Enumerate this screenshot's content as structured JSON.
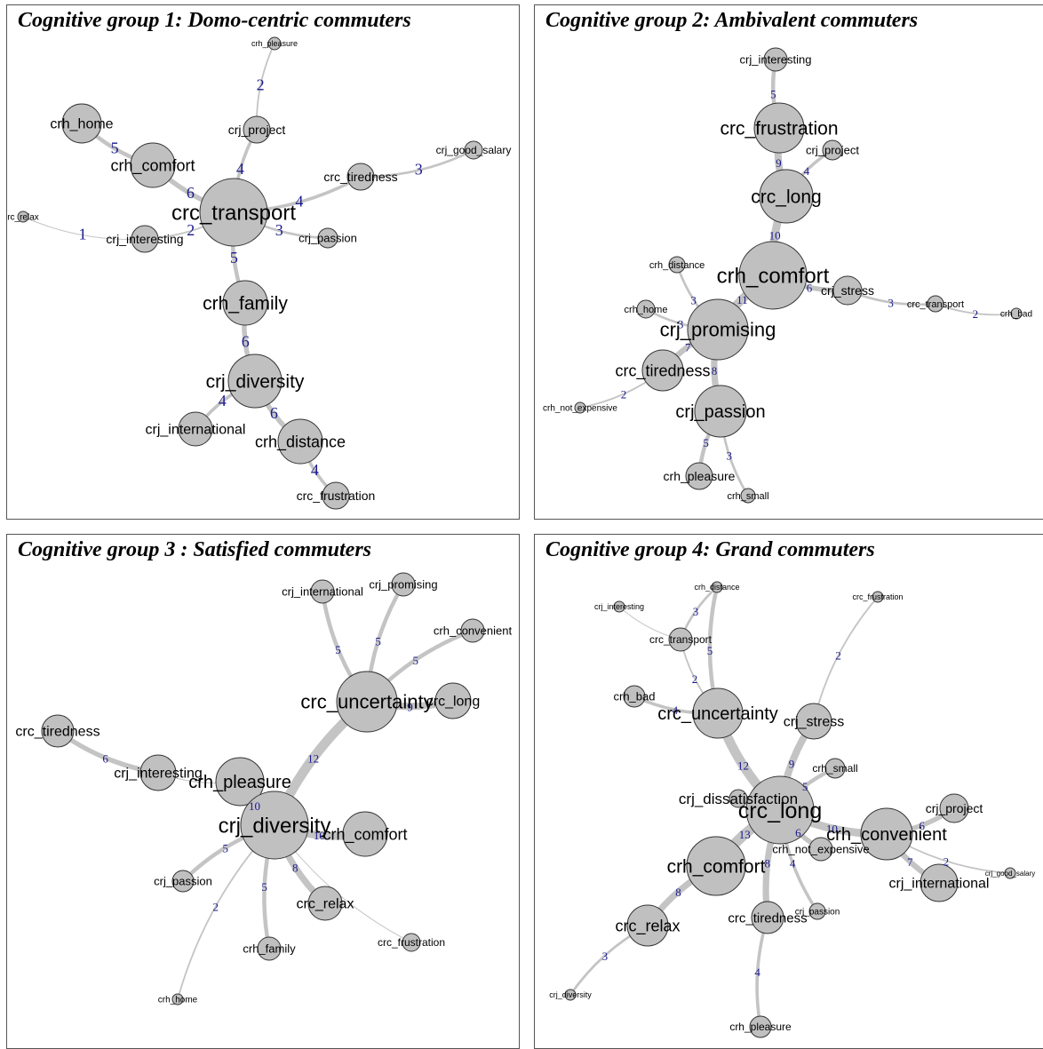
{
  "style": {
    "node_fill": "#c0c0c0",
    "node_stroke": "#333333",
    "edge_color": "#c4c4c4",
    "weight_color": "#1a1a8c",
    "label_color": "#000000"
  },
  "panels": [
    {
      "title": "Cognitive group 1:  Domo-centric commuters",
      "nodes": [
        {
          "id": "crc_transport",
          "label": "crc_transport"
        },
        {
          "id": "crh_pleasure",
          "label": "crh_pleasure"
        },
        {
          "id": "crj_project",
          "label": "crj_project"
        },
        {
          "id": "crh_home",
          "label": "crh_home"
        },
        {
          "id": "crh_comfort",
          "label": "crh_comfort"
        },
        {
          "id": "crc_tiredness",
          "label": "crc_tiredness"
        },
        {
          "id": "crj_good_salary",
          "label": "crj_good_salary"
        },
        {
          "id": "rc_relax",
          "label": "rc_relax"
        },
        {
          "id": "crj_interesting",
          "label": "crj_interesting"
        },
        {
          "id": "crj_passion",
          "label": "crj_passion"
        },
        {
          "id": "crh_family",
          "label": "crh_family"
        },
        {
          "id": "crj_diversity",
          "label": "crj_diversity"
        },
        {
          "id": "crj_international",
          "label": "crj_international"
        },
        {
          "id": "crh_distance",
          "label": "crh_distance"
        },
        {
          "id": "crc_frustration",
          "label": "crc_frustration"
        }
      ],
      "edges": [
        {
          "source": "crh_pleasure",
          "target": "crj_project",
          "weight": "2"
        },
        {
          "source": "crj_project",
          "target": "crc_transport",
          "weight": "4"
        },
        {
          "source": "crh_home",
          "target": "crh_comfort",
          "weight": "5"
        },
        {
          "source": "crh_comfort",
          "target": "crc_transport",
          "weight": "6"
        },
        {
          "source": "crc_transport",
          "target": "crc_tiredness",
          "weight": "4"
        },
        {
          "source": "crc_tiredness",
          "target": "crj_good_salary",
          "weight": "3"
        },
        {
          "source": "rc_relax",
          "target": "crj_interesting",
          "weight": "1"
        },
        {
          "source": "crj_interesting",
          "target": "crc_transport",
          "weight": "2"
        },
        {
          "source": "crc_transport",
          "target": "crj_passion",
          "weight": "3"
        },
        {
          "source": "crc_transport",
          "target": "crh_family",
          "weight": "5"
        },
        {
          "source": "crh_family",
          "target": "crj_diversity",
          "weight": "6"
        },
        {
          "source": "crj_diversity",
          "target": "crj_international",
          "weight": "4"
        },
        {
          "source": "crj_diversity",
          "target": "crh_distance",
          "weight": "6"
        },
        {
          "source": "crh_distance",
          "target": "crc_frustration",
          "weight": "4"
        }
      ]
    },
    {
      "title": "Cognitive group 2: Ambivalent commuters",
      "nodes": [
        {
          "id": "crj_interesting",
          "label": "crj_interesting"
        },
        {
          "id": "crc_frustration",
          "label": "crc_frustration"
        },
        {
          "id": "crj_project",
          "label": "crj_project"
        },
        {
          "id": "crc_long",
          "label": "crc_long"
        },
        {
          "id": "crh_comfort",
          "label": "crh_comfort"
        },
        {
          "id": "crh_distance",
          "label": "crh_distance"
        },
        {
          "id": "crj_stress",
          "label": "crj_stress"
        },
        {
          "id": "crc_transport",
          "label": "crc_transport"
        },
        {
          "id": "crh_bad",
          "label": "crh_bad"
        },
        {
          "id": "crh_home",
          "label": "crh_home"
        },
        {
          "id": "crj_promising",
          "label": "crj_promising"
        },
        {
          "id": "crc_tiredness",
          "label": "crc_tiredness"
        },
        {
          "id": "crh_not_expensive",
          "label": "crh_not_expensive"
        },
        {
          "id": "crj_passion",
          "label": "crj_passion"
        },
        {
          "id": "crh_pleasure",
          "label": "crh_pleasure"
        },
        {
          "id": "crh_small",
          "label": "crh_small"
        }
      ],
      "edges": [
        {
          "source": "crj_interesting",
          "target": "crc_frustration",
          "weight": "5"
        },
        {
          "source": "crc_frustration",
          "target": "crc_long",
          "weight": "9"
        },
        {
          "source": "crj_project",
          "target": "crc_long",
          "weight": "4"
        },
        {
          "source": "crc_long",
          "target": "crh_comfort",
          "weight": "10"
        },
        {
          "source": "crh_comfort",
          "target": "crj_stress",
          "weight": "6"
        },
        {
          "source": "crj_stress",
          "target": "crc_transport",
          "weight": "3"
        },
        {
          "source": "crc_transport",
          "target": "crh_bad",
          "weight": "2"
        },
        {
          "source": "crh_distance",
          "target": "crj_promising",
          "weight": "3"
        },
        {
          "source": "crh_home",
          "target": "crj_promising",
          "weight": "3"
        },
        {
          "source": "crh_comfort",
          "target": "crj_promising",
          "weight": "11"
        },
        {
          "source": "crj_promising",
          "target": "crc_tiredness",
          "weight": "7"
        },
        {
          "source": "crj_promising",
          "target": "crj_passion",
          "weight": "8"
        },
        {
          "source": "crh_not_expensive",
          "target": "crc_tiredness",
          "weight": "2"
        },
        {
          "source": "crj_passion",
          "target": "crh_pleasure",
          "weight": "5"
        },
        {
          "source": "crj_passion",
          "target": "crh_small",
          "weight": "3"
        }
      ]
    },
    {
      "title": "Cognitive group 3 : Satisfied commuters",
      "nodes": [
        {
          "id": "crj_international",
          "label": "crj_international"
        },
        {
          "id": "crj_promising",
          "label": "crj_promising"
        },
        {
          "id": "crh_convenient",
          "label": "crh_convenient"
        },
        {
          "id": "crc_uncertainty",
          "label": "crc_uncertainty"
        },
        {
          "id": "crc_long",
          "label": "crc_long"
        },
        {
          "id": "crc_tiredness",
          "label": "crc_tiredness"
        },
        {
          "id": "crj_interesting",
          "label": "crj_interesting"
        },
        {
          "id": "crh_pleasure",
          "label": "crh_pleasure"
        },
        {
          "id": "crj_diversity",
          "label": "crj_diversity"
        },
        {
          "id": "crh_comfort",
          "label": "crh_comfort"
        },
        {
          "id": "crj_passion",
          "label": "crj_passion"
        },
        {
          "id": "crc_relax",
          "label": "crc_relax"
        },
        {
          "id": "crc_frustration",
          "label": "crc_frustration"
        },
        {
          "id": "crh_family",
          "label": "crh_family"
        },
        {
          "id": "crh_home",
          "label": "crh_home"
        }
      ],
      "edges": [
        {
          "source": "crj_international",
          "target": "crc_uncertainty",
          "weight": "5"
        },
        {
          "source": "crj_promising",
          "target": "crc_uncertainty",
          "weight": "5"
        },
        {
          "source": "crh_convenient",
          "target": "crc_uncertainty",
          "weight": "5"
        },
        {
          "source": "crc_uncertainty",
          "target": "crc_long",
          "weight": "9"
        },
        {
          "source": "crc_uncertainty",
          "target": "crj_diversity",
          "weight": "12"
        },
        {
          "source": "crc_tiredness",
          "target": "crj_interesting",
          "weight": "6"
        },
        {
          "source": "crj_interesting",
          "target": "crh_pleasure",
          "weight": ""
        },
        {
          "source": "crh_pleasure",
          "target": "crj_diversity",
          "weight": "10"
        },
        {
          "source": "crj_diversity",
          "target": "crh_comfort",
          "weight": "10"
        },
        {
          "source": "crj_diversity",
          "target": "crj_passion",
          "weight": "5"
        },
        {
          "source": "crj_diversity",
          "target": "crc_relax",
          "weight": "8"
        },
        {
          "source": "crj_diversity",
          "target": "crh_family",
          "weight": "5"
        },
        {
          "source": "crj_diversity",
          "target": "crh_home",
          "weight": "2"
        },
        {
          "source": "crj_diversity",
          "target": "crc_frustration",
          "weight": ""
        }
      ]
    },
    {
      "title": "Cognitive group 4: Grand commuters",
      "nodes": [
        {
          "id": "crh_distance",
          "label": "crh_distance"
        },
        {
          "id": "crj_interesting",
          "label": "crj_interesting"
        },
        {
          "id": "crc_frustration",
          "label": "crc_frustration"
        },
        {
          "id": "crc_transport",
          "label": "crc_transport"
        },
        {
          "id": "crh_bad",
          "label": "crh_bad"
        },
        {
          "id": "crc_uncertainty",
          "label": "crc_uncertainty"
        },
        {
          "id": "crj_stress",
          "label": "crj_stress"
        },
        {
          "id": "crh_small",
          "label": "crh_small"
        },
        {
          "id": "crj_dissatisfaction",
          "label": "crj_dissatisfaction"
        },
        {
          "id": "crc_long",
          "label": "crc_long"
        },
        {
          "id": "crj_project",
          "label": "crj_project"
        },
        {
          "id": "crh_convenient",
          "label": "crh_convenient"
        },
        {
          "id": "crh_not_expensive",
          "label": "crh_not_expensive"
        },
        {
          "id": "crj_good_salary",
          "label": "crj_good_salary"
        },
        {
          "id": "crh_comfort",
          "label": "crh_comfort"
        },
        {
          "id": "crj_international",
          "label": "crj_international"
        },
        {
          "id": "crj_passion",
          "label": "crj_passion"
        },
        {
          "id": "crc_relax",
          "label": "crc_relax"
        },
        {
          "id": "crc_tiredness",
          "label": "crc_tiredness"
        },
        {
          "id": "crj_diversity",
          "label": "crj_diversity"
        },
        {
          "id": "crh_pleasure",
          "label": "crh_pleasure"
        }
      ],
      "edges": [
        {
          "source": "crh_distance",
          "target": "crc_transport",
          "weight": "3"
        },
        {
          "source": "crj_interesting",
          "target": "crc_transport",
          "weight": ""
        },
        {
          "source": "crc_transport",
          "target": "crc_uncertainty",
          "weight": "2"
        },
        {
          "source": "crh_distance",
          "target": "crc_uncertainty",
          "weight": "5"
        },
        {
          "source": "crh_bad",
          "target": "crc_uncertainty",
          "weight": "4"
        },
        {
          "source": "crc_frustration",
          "target": "crj_stress",
          "weight": "2"
        },
        {
          "source": "crc_uncertainty",
          "target": "crc_long",
          "weight": "12"
        },
        {
          "source": "crj_stress",
          "target": "crc_long",
          "weight": "9"
        },
        {
          "source": "crh_small",
          "target": "crc_long",
          "weight": "5"
        },
        {
          "source": "crj_dissatisfaction",
          "target": "crc_long",
          "weight": ""
        },
        {
          "source": "crc_long",
          "target": "crh_convenient",
          "weight": "10"
        },
        {
          "source": "crc_long",
          "target": "crh_not_expensive",
          "weight": "6"
        },
        {
          "source": "crh_convenient",
          "target": "crj_project",
          "weight": "6"
        },
        {
          "source": "crh_convenient",
          "target": "crj_international",
          "weight": "7"
        },
        {
          "source": "crh_convenient",
          "target": "crj_good_salary",
          "weight": "2"
        },
        {
          "source": "crc_long",
          "target": "crh_comfort",
          "weight": "13"
        },
        {
          "source": "crc_long",
          "target": "crc_tiredness",
          "weight": "8"
        },
        {
          "source": "crc_long",
          "target": "crj_passion",
          "weight": "4"
        },
        {
          "source": "crh_comfort",
          "target": "crc_relax",
          "weight": "8"
        },
        {
          "source": "crc_relax",
          "target": "crj_diversity",
          "weight": "3"
        },
        {
          "source": "crc_tiredness",
          "target": "crh_pleasure",
          "weight": "4"
        }
      ]
    }
  ]
}
